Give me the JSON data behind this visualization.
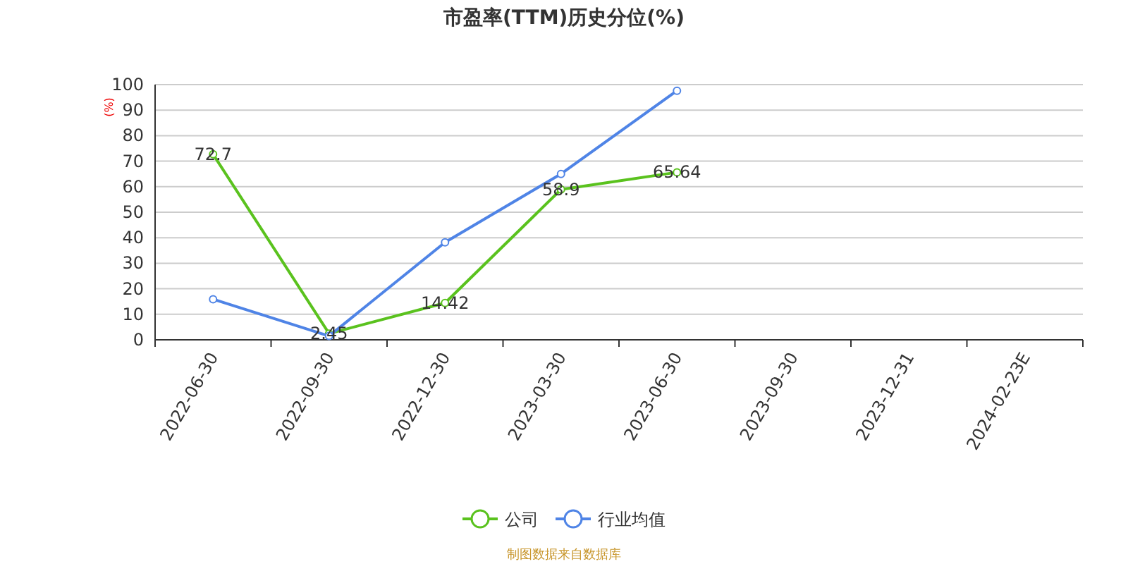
{
  "chart_data": {
    "type": "line",
    "title": "市盈率(TTM)历史分位(%)",
    "ylabel": "(%)",
    "categories": [
      "2022-06-30",
      "2022-09-30",
      "2022-12-30",
      "2023-03-30",
      "2023-06-30",
      "2023-09-30",
      "2023-12-31",
      "2024-02-23E"
    ],
    "series": [
      {
        "name": "公司",
        "color": "#5ac21e",
        "values": [
          72.7,
          2.45,
          14.42,
          58.9,
          65.64,
          null,
          null,
          null
        ],
        "value_labels": [
          "72.7",
          "2.45",
          "14.42",
          "58.9",
          "65.64",
          null,
          null,
          null
        ]
      },
      {
        "name": "行业均值",
        "color": "#4f84e6",
        "values": [
          15.9,
          1.5,
          38.2,
          65,
          97.6,
          null,
          null,
          null
        ]
      }
    ],
    "ylim": [
      0,
      100
    ],
    "yticks": [
      0,
      10,
      20,
      30,
      40,
      50,
      60,
      70,
      80,
      90,
      100
    ],
    "grid": "y",
    "legend": "bottom",
    "marker": "circle",
    "line_style": "solid",
    "annotations": [
      "制图数据来自数据库"
    ]
  }
}
